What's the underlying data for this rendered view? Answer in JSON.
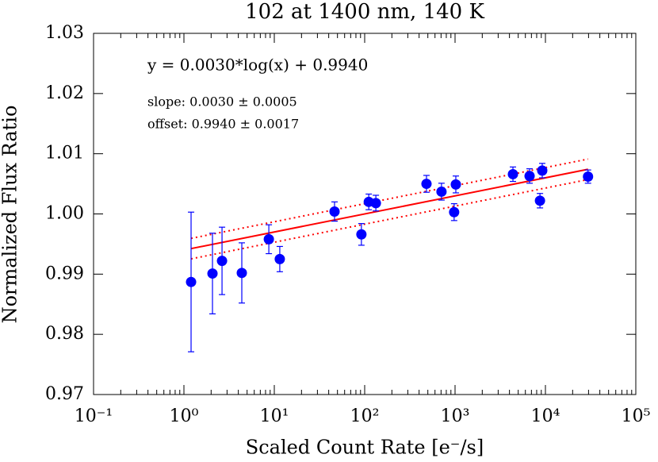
{
  "chart_data": {
    "type": "scatter",
    "title": "102 at 1400 nm, 140 K",
    "x_label": "Scaled Count Rate [e⁻/s]",
    "y_label": "Normalized Flux Ratio",
    "annotations": [
      "y = 0.0030*log(x) + 0.9940",
      "slope: 0.0030  ± 0.0005",
      "offset: 0.9940  ± 0.0017"
    ],
    "x": [
      1.2,
      2.07,
      2.64,
      4.37,
      8.7,
      11.5,
      46.4,
      92,
      111,
      133,
      483,
      708,
      977,
      1020,
      4370,
      6680,
      9220,
      8700,
      29600
    ],
    "values": [
      0.9887,
      0.9901,
      0.9922,
      0.9902,
      0.9958,
      0.9925,
      1.0004,
      0.9966,
      1.002,
      1.0018,
      1.005,
      1.0037,
      1.0003,
      1.0049,
      1.0066,
      1.0063,
      1.0072,
      1.0022,
      1.0062
    ],
    "errors": [
      0.0116,
      0.0067,
      0.0056,
      0.005,
      0.0024,
      0.0021,
      0.0016,
      0.0018,
      0.0013,
      0.0013,
      0.0014,
      0.0014,
      0.0014,
      0.0014,
      0.0012,
      0.0012,
      0.0012,
      0.0012,
      0.0011
    ],
    "color": "#0000ff",
    "fit": {
      "slope": 0.003,
      "offset": 0.994,
      "slope_error": 0.0005,
      "offset_error": 0.0017,
      "color": "#ff0000"
    },
    "x_log": true,
    "xlim": [
      0.1,
      100000
    ],
    "xticks": [
      {
        "value": 0.1,
        "label": "10⁻¹"
      },
      {
        "value": 1,
        "label": "10⁰"
      },
      {
        "value": 10,
        "label": "10¹"
      },
      {
        "value": 100,
        "label": "10²"
      },
      {
        "value": 1000,
        "label": "10³"
      },
      {
        "value": 10000,
        "label": "10⁴"
      },
      {
        "value": 100000,
        "label": "10⁵"
      }
    ],
    "ylim": [
      0.97,
      1.03
    ],
    "yticks": [
      0.97,
      0.98,
      0.99,
      {
        "value": 1.0,
        "label": "1.00"
      },
      1.01,
      1.02,
      1.03
    ]
  }
}
